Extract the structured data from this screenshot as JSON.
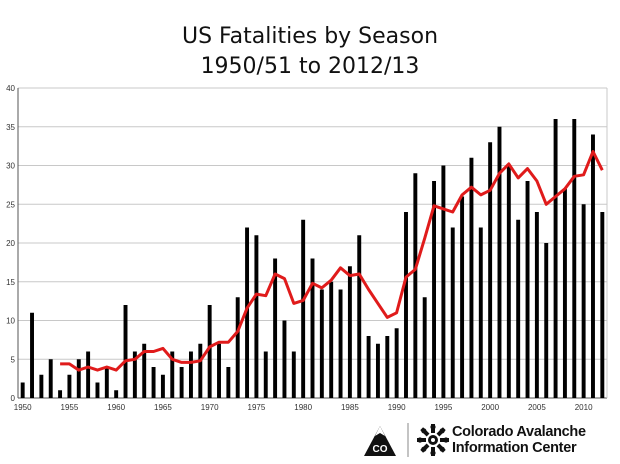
{
  "title": {
    "line1": "US Fatalities by Season",
    "line2": "1950/51 to 2012/13"
  },
  "logo": {
    "line1": "Colorado Avalanche",
    "line2": "Information Center",
    "badge_text": "CO",
    "icons": [
      "mountain-co-badge-icon",
      "snowflake-icon"
    ]
  },
  "colors": {
    "bars": "#000000",
    "moving_average": "#e01b1b",
    "grid": "#c8c8c8"
  },
  "chart_data": {
    "type": "bar",
    "title": "US Fatalities by Season 1950/51 to 2012/13",
    "xlabel": "",
    "ylabel": "",
    "ylim": [
      0,
      40
    ],
    "yticks": [
      0,
      5,
      10,
      15,
      20,
      25,
      30,
      35,
      40
    ],
    "xticks": [
      1950,
      1955,
      1960,
      1965,
      1970,
      1975,
      1980,
      1985,
      1990,
      1995,
      2000,
      2005,
      2010
    ],
    "grid": "horizontal",
    "legend": "none",
    "x": [
      1950,
      1951,
      1952,
      1953,
      1954,
      1955,
      1956,
      1957,
      1958,
      1959,
      1960,
      1961,
      1962,
      1963,
      1964,
      1965,
      1966,
      1967,
      1968,
      1969,
      1970,
      1971,
      1972,
      1973,
      1974,
      1975,
      1976,
      1977,
      1978,
      1979,
      1980,
      1981,
      1982,
      1983,
      1984,
      1985,
      1986,
      1987,
      1988,
      1989,
      1990,
      1991,
      1992,
      1993,
      1994,
      1995,
      1996,
      1997,
      1998,
      1999,
      2000,
      2001,
      2002,
      2003,
      2004,
      2005,
      2006,
      2007,
      2008,
      2009,
      2010,
      2011,
      2012
    ],
    "series": [
      {
        "type": "bar",
        "values": [
          2,
          11,
          3,
          5,
          1,
          3,
          5,
          6,
          2,
          4,
          1,
          12,
          6,
          7,
          4,
          3,
          6,
          4,
          6,
          7,
          12,
          7,
          4,
          13,
          22,
          21,
          6,
          18,
          10,
          6,
          23,
          18,
          14,
          15,
          14,
          17,
          21,
          8,
          7,
          8,
          9,
          24,
          29,
          13,
          28,
          30,
          22,
          26,
          31,
          22,
          33,
          35,
          30,
          23,
          28,
          24,
          20,
          36,
          27,
          36,
          25,
          34,
          24
        ]
      },
      {
        "type": "line",
        "x": [
          1954,
          1955,
          1956,
          1957,
          1958,
          1959,
          1960,
          1961,
          1962,
          1963,
          1964,
          1965,
          1966,
          1967,
          1968,
          1969,
          1970,
          1971,
          1972,
          1973,
          1974,
          1975,
          1976,
          1977,
          1978,
          1979,
          1980,
          1981,
          1982,
          1983,
          1984,
          1985,
          1986,
          1987,
          1988,
          1989,
          1990,
          1991,
          1992,
          1993,
          1994,
          1995,
          1996,
          1997,
          1998,
          1999,
          2000,
          2001,
          2002,
          2003,
          2004,
          2005,
          2006,
          2007,
          2008,
          2009,
          2010,
          2011,
          2012
        ],
        "values": [
          4.4,
          4.4,
          3.6,
          4.0,
          3.6,
          4.0,
          3.6,
          4.8,
          5.0,
          6.0,
          6.0,
          6.4,
          5.0,
          4.6,
          4.6,
          4.8,
          6.6,
          7.2,
          7.2,
          8.6,
          11.6,
          13.4,
          13.2,
          16.0,
          15.4,
          12.2,
          12.6,
          14.8,
          14.2,
          15.2,
          16.8,
          15.8,
          16.0,
          14.0,
          12.2,
          10.4,
          11.0,
          15.6,
          16.6,
          20.6,
          24.8,
          24.4,
          24.0,
          26.2,
          27.2,
          26.2,
          26.8,
          29.0,
          30.2,
          28.4,
          29.6,
          28.0,
          25.0,
          26.0,
          27.0,
          28.6,
          28.8,
          31.8,
          29.4
        ]
      }
    ]
  }
}
